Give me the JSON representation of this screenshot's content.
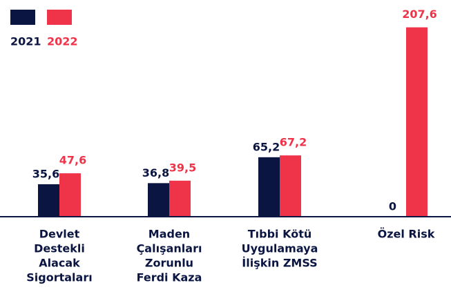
{
  "chart_data": {
    "type": "bar",
    "categories": [
      [
        "Devlet",
        "Destekli",
        "Alacak",
        "Sigortaları"
      ],
      [
        "Maden",
        "Çalışanları",
        "Zorunlu",
        "Ferdi Kaza"
      ],
      [
        "Tıbbi Kötü",
        "Uygulamaya",
        "İlişkin ZMSS"
      ],
      [
        "Özel Risk"
      ]
    ],
    "series": [
      {
        "name": "2021",
        "color": "#0b1541",
        "values": [
          35.6,
          36.8,
          65.2,
          0
        ],
        "value_labels": [
          "35,6",
          "36,8",
          "65,2",
          "0"
        ]
      },
      {
        "name": "2022",
        "color": "#ef3349",
        "values": [
          47.6,
          39.5,
          67.2,
          207.6
        ],
        "value_labels": [
          "47,6",
          "39,5",
          "67,2",
          "207,6"
        ]
      }
    ],
    "ylim": [
      0,
      230
    ]
  }
}
